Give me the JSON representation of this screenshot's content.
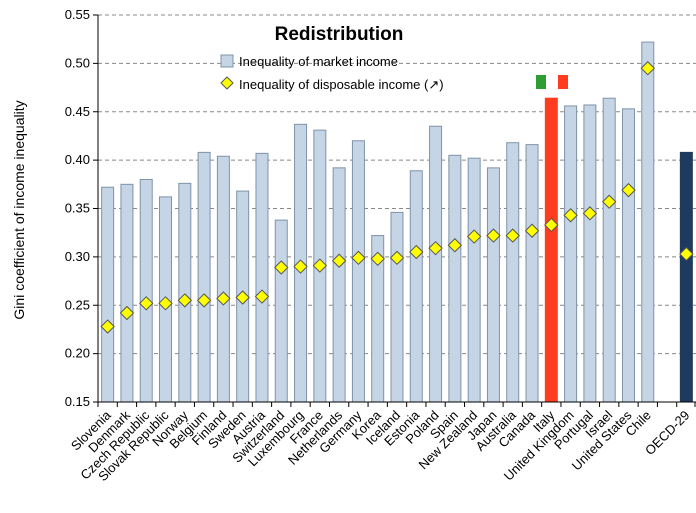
{
  "colors": {
    "market_bar": "#c5d5e6",
    "market_bar_stroke": "#7f93a8",
    "italy_bar": "#ff3c1e",
    "oecd_bar": "#1f3a5f",
    "disposable_marker": "#ffff00",
    "gridline": "#888888",
    "flag_green": "#2e9e33",
    "flag_red": "#ff3c1e"
  },
  "chart_data": {
    "type": "bar",
    "title": "Redistribution",
    "xlabel": "",
    "ylabel": "Gini coefficient of income inequality",
    "ylim": [
      0.15,
      0.55
    ],
    "yticks": [
      "0.15",
      "0.20",
      "0.25",
      "0.30",
      "0.35",
      "0.40",
      "0.45",
      "0.50",
      "0.55"
    ],
    "grid": true,
    "legend_position": "top-center",
    "categories": [
      "Slovenia",
      "Denmark",
      "Czech Republic",
      "Slovak Republic",
      "Norway",
      "Belgium",
      "Finland",
      "Sweden",
      "Austria",
      "Switzerland",
      "Luxembourg",
      "France",
      "Netherlands",
      "Germany",
      "Korea",
      "Iceland",
      "Estonia",
      "Poland",
      "Spain",
      "New Zealand",
      "Japan",
      "Australia",
      "Canada",
      "Italy",
      "United Kingdom",
      "Portugal",
      "Israel",
      "United States",
      "Chile",
      "",
      "OECD-29"
    ],
    "series": [
      {
        "name": "Inequality of market income",
        "kind": "bar",
        "values": [
          0.372,
          0.375,
          0.38,
          0.362,
          0.376,
          0.408,
          0.404,
          0.368,
          0.407,
          0.338,
          0.437,
          0.431,
          0.392,
          0.42,
          0.322,
          0.346,
          0.389,
          0.435,
          0.405,
          0.402,
          0.392,
          0.418,
          0.416,
          0.464,
          0.456,
          0.457,
          0.464,
          0.453,
          0.522,
          null,
          0.408
        ]
      },
      {
        "name": "Inequality of disposable income (↗)",
        "kind": "marker",
        "values": [
          0.228,
          0.242,
          0.252,
          0.252,
          0.255,
          0.255,
          0.257,
          0.258,
          0.259,
          0.289,
          0.29,
          0.291,
          0.296,
          0.299,
          0.298,
          0.299,
          0.305,
          0.309,
          0.312,
          0.321,
          0.322,
          0.322,
          0.327,
          0.333,
          0.343,
          0.345,
          0.357,
          0.369,
          0.495,
          null,
          0.303
        ]
      }
    ],
    "highlight": {
      "Italy": "italy_bar",
      "OECD-29": "oecd_bar"
    }
  }
}
